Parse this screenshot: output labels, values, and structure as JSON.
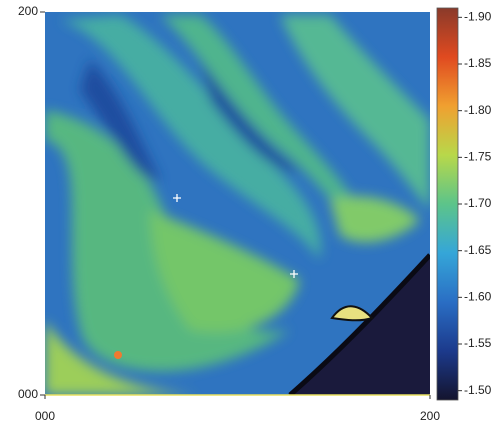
{
  "chart_data": {
    "type": "image-map",
    "xlim": [
      0,
      200
    ],
    "xticks": [
      {
        "value": 0,
        "label": "000"
      },
      {
        "value": 200,
        "label": "200"
      }
    ],
    "ylim": [
      0,
      200
    ],
    "yticks": [
      {
        "value": 0,
        "label": "000"
      },
      {
        "value": 200,
        "label": "200"
      }
    ],
    "clim": [
      -1.49,
      -1.91
    ],
    "cticks": [
      {
        "value": -1.9,
        "label": "-1.90"
      },
      -1.85,
      {
        "value": -1.8,
        "label": "-1.80"
      },
      -1.75,
      {
        "value": -1.7,
        "label": "-1.70"
      },
      -1.65,
      {
        "value": -1.6,
        "label": "-1.60"
      },
      -1.55,
      {
        "value": -1.5,
        "label": "-1.50"
      }
    ],
    "colormap": [
      "#14142e",
      "#1c3a8c",
      "#2a6ec4",
      "#35a6d8",
      "#5cc48a",
      "#b8d84a",
      "#f0a030",
      "#e04a20",
      "#8a3a2a"
    ]
  }
}
